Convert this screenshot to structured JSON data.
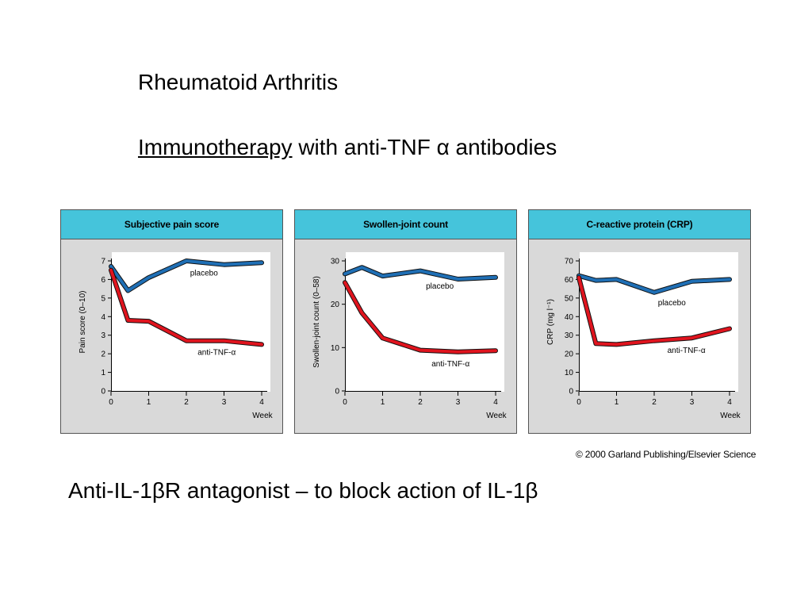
{
  "slide": {
    "title": "Rheumatoid Arthritis",
    "subtitle_underlined": "Immunotherapy",
    "subtitle_rest": " with anti-TNF α antibodies",
    "copyright": "© 2000 Garland Publishing/Elsevier Science",
    "bottom_text": "Anti-IL-1βR antagonist – to block action of IL-1β"
  },
  "colors": {
    "header_bg": "#45c4db",
    "panel_bg": "#d9d9d9",
    "placebo": "#1f6fb5",
    "anti_tnf": "#e0141e"
  },
  "chart_data": [
    {
      "type": "line",
      "title": "Subjective pain score",
      "xlabel": "Week",
      "ylabel": "Pain score (0–10)",
      "xlim": [
        0,
        4
      ],
      "ylim": [
        0,
        7
      ],
      "xticks": [
        0,
        1,
        2,
        3,
        4
      ],
      "yticks": [
        0,
        1,
        2,
        3,
        4,
        5,
        6,
        7
      ],
      "series": [
        {
          "name": "placebo",
          "color": "#1f6fb5",
          "x": [
            0,
            0.45,
            1,
            2,
            3,
            4
          ],
          "y": [
            6.7,
            5.4,
            6.1,
            7.0,
            6.8,
            6.9
          ]
        },
        {
          "name": "anti-TNF-α",
          "color": "#e0141e",
          "x": [
            0,
            0.45,
            1,
            2,
            3,
            4
          ],
          "y": [
            6.5,
            3.8,
            3.75,
            2.7,
            2.7,
            2.5
          ]
        }
      ],
      "labels": [
        {
          "series": 0,
          "x": 2.1,
          "y": 6.2
        },
        {
          "series": 1,
          "x": 2.3,
          "y": 1.95
        }
      ]
    },
    {
      "type": "line",
      "title": "Swollen-joint count",
      "xlabel": "Week",
      "ylabel": "Swollen-joint count (0–58)",
      "xlim": [
        0,
        4
      ],
      "ylim": [
        0,
        30
      ],
      "xticks": [
        0,
        1,
        2,
        3,
        4
      ],
      "yticks": [
        0,
        10,
        20,
        30
      ],
      "series": [
        {
          "name": "placebo",
          "color": "#1f6fb5",
          "x": [
            0,
            0.45,
            1,
            2,
            3,
            4
          ],
          "y": [
            27,
            28.5,
            26.5,
            27.7,
            25.8,
            26.2
          ]
        },
        {
          "name": "anti-TNF-α",
          "color": "#e0141e",
          "x": [
            0,
            0.45,
            1,
            2,
            3,
            4
          ],
          "y": [
            25,
            18,
            12.2,
            9.4,
            9.0,
            9.3
          ]
        }
      ],
      "labels": [
        {
          "series": 0,
          "x": 2.15,
          "y": 23.6
        },
        {
          "series": 1,
          "x": 2.3,
          "y": 5.7
        }
      ]
    },
    {
      "type": "line",
      "title": "C-reactive protein (CRP)",
      "xlabel": "Week",
      "ylabel": "CRP (mg l⁻¹)",
      "xlim": [
        0,
        4
      ],
      "ylim": [
        0,
        70
      ],
      "xticks": [
        0,
        1,
        2,
        3,
        4
      ],
      "yticks": [
        0,
        10,
        20,
        30,
        40,
        50,
        60,
        70
      ],
      "series": [
        {
          "name": "placebo",
          "color": "#1f6fb5",
          "x": [
            0,
            0.45,
            1,
            2,
            3,
            4
          ],
          "y": [
            62,
            59.5,
            60,
            53,
            59,
            60
          ]
        },
        {
          "name": "anti-TNF-α",
          "color": "#e0141e",
          "x": [
            0,
            0.45,
            1,
            2,
            3,
            4
          ],
          "y": [
            61,
            25.5,
            25,
            27,
            28.5,
            33.5
          ]
        }
      ],
      "labels": [
        {
          "series": 0,
          "x": 2.1,
          "y": 46
        },
        {
          "series": 1,
          "x": 2.35,
          "y": 20.5
        }
      ]
    }
  ]
}
